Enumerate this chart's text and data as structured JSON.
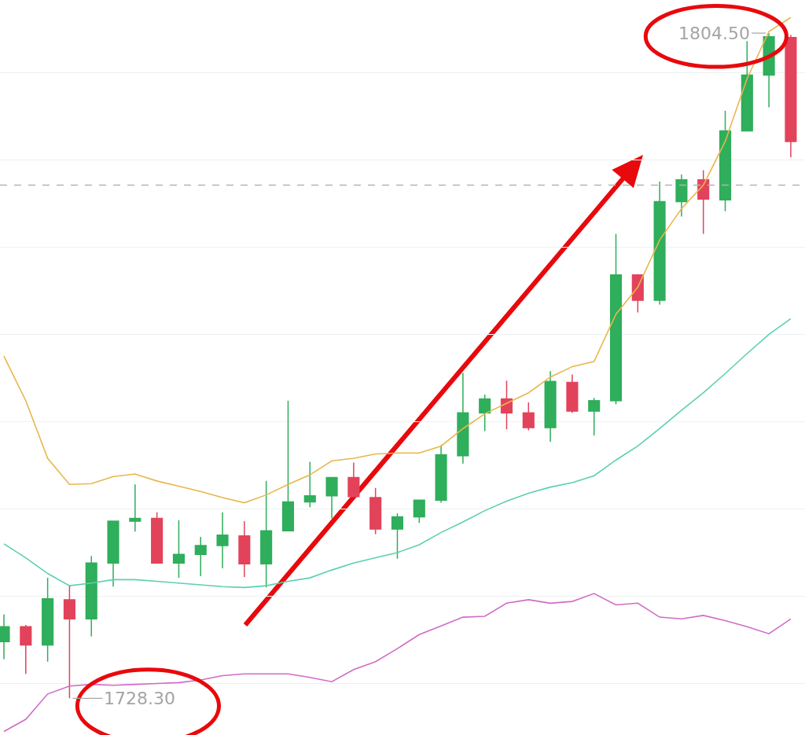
{
  "chart_data": {
    "type": "candlestick",
    "categories": [
      null,
      null,
      null,
      null,
      null,
      null,
      null,
      null,
      null,
      null,
      null,
      null,
      null,
      null,
      null,
      null,
      null,
      null,
      null,
      null,
      null,
      null,
      null,
      null,
      null,
      null,
      null,
      null,
      null,
      null,
      null,
      null,
      null,
      null,
      null,
      null,
      null
    ],
    "ohlc": [
      [
        1734.8,
        1737.9,
        1732.8,
        1736.5
      ],
      [
        1736.5,
        1736.7,
        1731.1,
        1734.4
      ],
      [
        1734.4,
        1742.1,
        1732.5,
        1739.7
      ],
      [
        1739.6,
        1741.3,
        1728.3,
        1737.4
      ],
      [
        1737.4,
        1744.6,
        1735.4,
        1743.8
      ],
      [
        1743.8,
        1748.6,
        1741.1,
        1748.6
      ],
      [
        1748.6,
        1752.8,
        1747.4,
        1748.9
      ],
      [
        1748.9,
        1749.6,
        1743.8,
        1743.8
      ],
      [
        1743.8,
        1748.7,
        1742.1,
        1744.8
      ],
      [
        1744.8,
        1746.8,
        1742.3,
        1745.8
      ],
      [
        1745.8,
        1749.6,
        1743.2,
        1747.0
      ],
      [
        1746.9,
        1748.6,
        1742.2,
        1743.7
      ],
      [
        1743.7,
        1753.2,
        1741.0,
        1747.5
      ],
      [
        1747.5,
        1762.4,
        1747.5,
        1750.8
      ],
      [
        1750.8,
        1755.4,
        1750.2,
        1751.5
      ],
      [
        1751.5,
        1753.6,
        1748.9,
        1753.6
      ],
      [
        1753.6,
        1755.3,
        1751.4,
        1751.4
      ],
      [
        1751.3,
        1752.4,
        1747.1,
        1747.7
      ],
      [
        1747.7,
        1749.5,
        1744.3,
        1749.1
      ],
      [
        1749.1,
        1751.0,
        1748.4,
        1751.0
      ],
      [
        1751.0,
        1757.3,
        1750.7,
        1756.2
      ],
      [
        1756.1,
        1765.6,
        1755.2,
        1761.0
      ],
      [
        1761.0,
        1763.1,
        1758.9,
        1762.6
      ],
      [
        1762.6,
        1764.7,
        1759.1,
        1761.0
      ],
      [
        1761.0,
        1762.2,
        1759.0,
        1759.3
      ],
      [
        1759.3,
        1765.8,
        1757.7,
        1764.6
      ],
      [
        1764.5,
        1765.4,
        1761.0,
        1761.2
      ],
      [
        1761.2,
        1762.7,
        1758.4,
        1762.4
      ],
      [
        1762.4,
        1781.5,
        1762.0,
        1776.8
      ],
      [
        1776.8,
        1776.9,
        1772.5,
        1773.9
      ],
      [
        1773.9,
        1787.5,
        1773.4,
        1785.2
      ],
      [
        1785.2,
        1788.3,
        1783.5,
        1787.7
      ],
      [
        1787.7,
        1788.8,
        1781.5,
        1785.5
      ],
      [
        1785.4,
        1795.6,
        1784.1,
        1793.3
      ],
      [
        1793.3,
        1803.6,
        1793.3,
        1799.7
      ],
      [
        1799.7,
        1804.5,
        1796.0,
        1804.1
      ],
      [
        1804.0,
        1804.3,
        1790.3,
        1792.1
      ]
    ],
    "colors": [
      "#2fae5b",
      "#e2435b",
      "#2fae5b",
      "#e2435b",
      "#2fae5b",
      "#2fae5b",
      "#2fae5b",
      "#e2435b",
      "#2fae5b",
      "#2fae5b",
      "#2fae5b",
      "#e2435b",
      "#2fae5b",
      "#2fae5b",
      "#2fae5b",
      "#2fae5b",
      "#e2435b",
      "#e2435b",
      "#2fae5b",
      "#2fae5b",
      "#2fae5b",
      "#2fae5b",
      "#2fae5b",
      "#e2435b",
      "#e2435b",
      "#2fae5b",
      "#e2435b",
      "#2fae5b",
      "#2fae5b",
      "#e2435b",
      "#2fae5b",
      "#2fae5b",
      "#e2435b",
      "#2fae5b",
      "#2fae5b",
      "#2fae5b",
      "#e2435b"
    ],
    "series": [
      {
        "type": "line",
        "color": "#e8b64c",
        "values": [
          1767.5,
          1762.4,
          1755.8,
          1752.8,
          1752.9,
          1753.7,
          1754.0,
          1753.2,
          1752.6,
          1752.0,
          1751.3,
          1750.7,
          1751.6,
          1752.8,
          1753.9,
          1755.5,
          1755.8,
          1756.3,
          1756.4,
          1756.4,
          1757.2,
          1759.2,
          1760.9,
          1762.1,
          1763.3,
          1765.1,
          1766.3,
          1766.9,
          1772.3,
          1775.4,
          1780.8,
          1784.4,
          1787.1,
          1792.1,
          1799.3,
          1804.7,
          1806.3
        ]
      },
      {
        "type": "line",
        "color": "#5ccfb2",
        "values": [
          1746.0,
          1744.4,
          1742.6,
          1741.2,
          1741.5,
          1741.9,
          1741.9,
          1741.7,
          1741.5,
          1741.3,
          1741.1,
          1741.0,
          1741.2,
          1741.7,
          1742.1,
          1743.0,
          1743.8,
          1744.4,
          1745.0,
          1745.9,
          1747.3,
          1748.5,
          1749.8,
          1750.9,
          1751.8,
          1752.5,
          1753.0,
          1753.8,
          1755.6,
          1757.2,
          1759.2,
          1761.3,
          1763.3,
          1765.5,
          1767.8,
          1770.0,
          1771.8
        ]
      },
      {
        "type": "line",
        "color": "#d06cc6",
        "values": [
          1724.5,
          1725.9,
          1728.8,
          1729.7,
          1729.9,
          1729.8,
          1729.9,
          1730.0,
          1730.1,
          1730.4,
          1730.9,
          1731.1,
          1731.1,
          1731.1,
          1730.7,
          1730.2,
          1731.6,
          1732.5,
          1734.0,
          1735.6,
          1736.6,
          1737.6,
          1737.7,
          1739.2,
          1739.6,
          1739.2,
          1739.4,
          1740.3,
          1739.0,
          1739.2,
          1737.6,
          1737.4,
          1737.8,
          1737.2,
          1736.5,
          1735.7,
          1737.4
        ]
      }
    ],
    "ylim": [
      1724.1,
      1808.3
    ],
    "yticks": [
      {
        "value": 1730,
        "label": null
      },
      {
        "value": 1740,
        "label": null
      },
      {
        "value": 1750,
        "label": null
      },
      {
        "value": 1760,
        "label": null
      },
      {
        "value": 1770,
        "label": null
      },
      {
        "value": 1780,
        "label": null
      },
      {
        "value": 1790,
        "label": null
      },
      {
        "value": 1800,
        "label": null
      }
    ],
    "grid": "y",
    "ref_lines": [
      {
        "axis": "y",
        "value": 1787.1,
        "color": "#b4b4b4",
        "line_style": "dashed"
      }
    ],
    "annotations": [
      "1804.50",
      "1728.30"
    ]
  }
}
